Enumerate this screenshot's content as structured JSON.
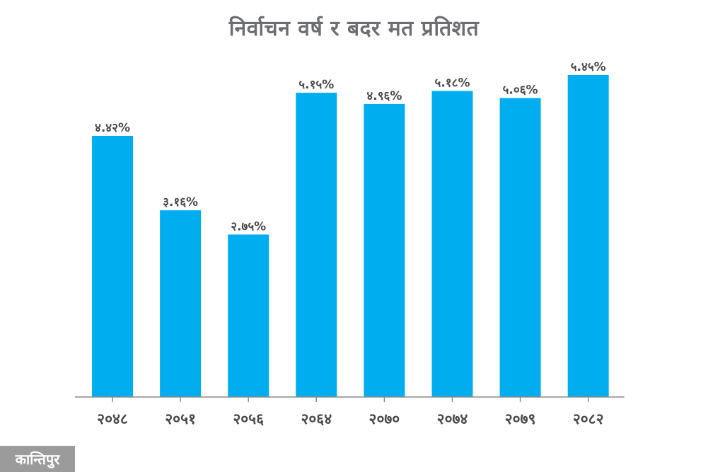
{
  "chart_data": {
    "type": "bar",
    "title": "निर्वाचन वर्ष र बदर मत प्रतिशत",
    "categories": [
      "२०४८",
      "२०५१",
      "२०५६",
      "२०६४",
      "२०७०",
      "२०७४",
      "२०७९",
      "२०८२"
    ],
    "values": [
      4.42,
      3.16,
      2.75,
      5.15,
      4.96,
      5.18,
      5.06,
      5.45
    ],
    "value_labels": [
      "४.४२%",
      "३.१६%",
      "२.७५%",
      "५.१५%",
      "४.९६%",
      "५.१८%",
      "५.०६%",
      "५.४५%"
    ],
    "xlabel": "",
    "ylabel": "",
    "ylim": [
      0,
      5.45
    ],
    "grid": false,
    "bar_color": "#00aeef"
  },
  "logo_text": "कान्तिपुर"
}
